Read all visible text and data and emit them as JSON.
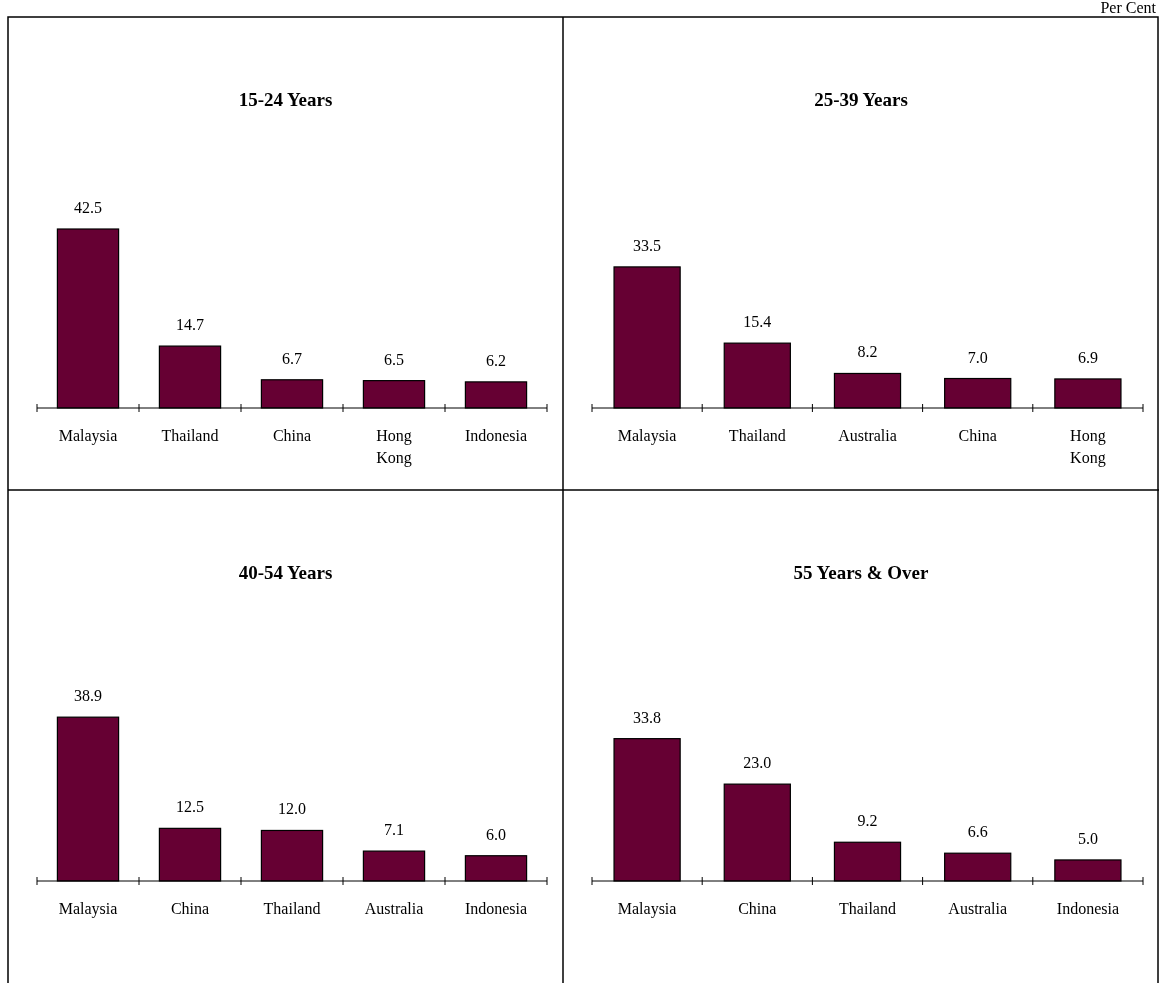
{
  "chart_data": [
    {
      "type": "bar",
      "title": "15-24 Years",
      "categories": [
        "Malaysia",
        "Thailand",
        "China",
        "Hong Kong",
        "Indonesia"
      ],
      "values": [
        42.5,
        14.7,
        6.7,
        6.5,
        6.2
      ],
      "value_labels": [
        "42.5",
        "14.7",
        "6.7",
        "6.5",
        "6.2"
      ],
      "color": "#660033",
      "tick_labels": "x",
      "annotations": [
        "Per Cent"
      ]
    },
    {
      "type": "bar",
      "title": "25-39 Years",
      "categories": [
        "Malaysia",
        "Thailand",
        "Australia",
        "China",
        "Hong Kong"
      ],
      "values": [
        33.5,
        15.4,
        8.2,
        7.0,
        6.9
      ],
      "value_labels": [
        "33.5",
        "15.4",
        "8.2",
        "7.0",
        "6.9"
      ],
      "color": "#660033",
      "tick_labels": "x"
    },
    {
      "type": "bar",
      "title": "40-54 Years",
      "categories": [
        "Malaysia",
        "China",
        "Thailand",
        "Australia",
        "Indonesia"
      ],
      "values": [
        38.9,
        12.5,
        12.0,
        7.1,
        6.0
      ],
      "value_labels": [
        "38.9",
        "12.5",
        "12.0",
        "7.1",
        "6.0"
      ],
      "color": "#660033",
      "tick_labels": "x"
    },
    {
      "type": "bar",
      "title": "55 Years & Over",
      "categories": [
        "Malaysia",
        "China",
        "Thailand",
        "Australia",
        "Indonesia"
      ],
      "values": [
        33.8,
        23.0,
        9.2,
        6.6,
        5.0
      ],
      "value_labels": [
        "33.8",
        "23.0",
        "9.2",
        "6.6",
        "5.0"
      ],
      "color": "#660033",
      "tick_labels": "x"
    }
  ]
}
